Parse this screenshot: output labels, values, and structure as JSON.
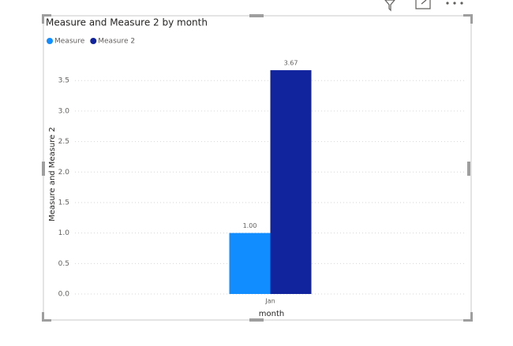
{
  "chart_data": {
    "type": "bar",
    "title": "Measure and Measure 2 by month",
    "x_label": "month",
    "y_label": "Measure and Measure 2",
    "categories": [
      "Jan"
    ],
    "series": [
      {
        "name": "Measure",
        "color": "#118DFF",
        "values": [
          1
        ],
        "value_labels": [
          "1.00"
        ]
      },
      {
        "name": "Measure 2",
        "color": "#12239E",
        "values": [
          3.67
        ],
        "value_labels": [
          "3.67"
        ]
      }
    ],
    "ylim": [
      0,
      3.8
    ],
    "yticks": [
      {
        "value": 0,
        "label": "0.0"
      },
      0.5,
      {
        "value": 1,
        "label": "1.0"
      },
      1.5,
      {
        "value": 2,
        "label": "2.0"
      },
      2.5,
      {
        "value": 3,
        "label": "3.0"
      },
      3.5
    ],
    "grid": true,
    "legend": "top-left"
  }
}
